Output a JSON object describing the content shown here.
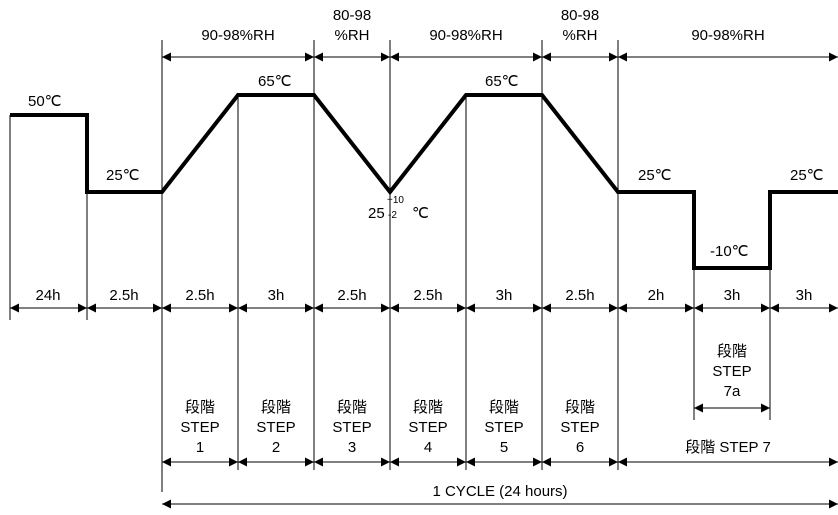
{
  "humidity_bands": [
    {
      "text": "90-98%RH"
    },
    {
      "lines": [
        "80-98",
        "%RH"
      ]
    },
    {
      "text": "90-98%RH"
    },
    {
      "lines": [
        "80-98",
        "%RH"
      ]
    },
    {
      "text": "90-98%RH"
    }
  ],
  "temperature_labels": {
    "t50": "50℃",
    "t25_left": "25℃",
    "t65_first": "65℃",
    "t25_center_base": "25",
    "t25_center_sup": "+10",
    "t25_center_sub": "-2",
    "t25_center_unit": "℃",
    "t65_second": "65℃",
    "t25_right": "25℃",
    "t_minus10": "-10℃",
    "t25_far_right": "25℃"
  },
  "durations": [
    "24h",
    "2.5h",
    "2.5h",
    "3h",
    "2.5h",
    "2.5h",
    "3h",
    "2.5h",
    "2h",
    "3h",
    "3h"
  ],
  "steps": [
    {
      "zh": "段階",
      "en": "STEP",
      "num": "1"
    },
    {
      "zh": "段階",
      "en": "STEP",
      "num": "2"
    },
    {
      "zh": "段階",
      "en": "STEP",
      "num": "3"
    },
    {
      "zh": "段階",
      "en": "STEP",
      "num": "4"
    },
    {
      "zh": "段階",
      "en": "STEP",
      "num": "5"
    },
    {
      "zh": "段階",
      "en": "STEP",
      "num": "6"
    }
  ],
  "step7a": {
    "zh": "段階",
    "en": "STEP",
    "num": "7a"
  },
  "step7_label": "段階 STEP 7",
  "cycle_label": "1 CYCLE (24 hours)"
}
